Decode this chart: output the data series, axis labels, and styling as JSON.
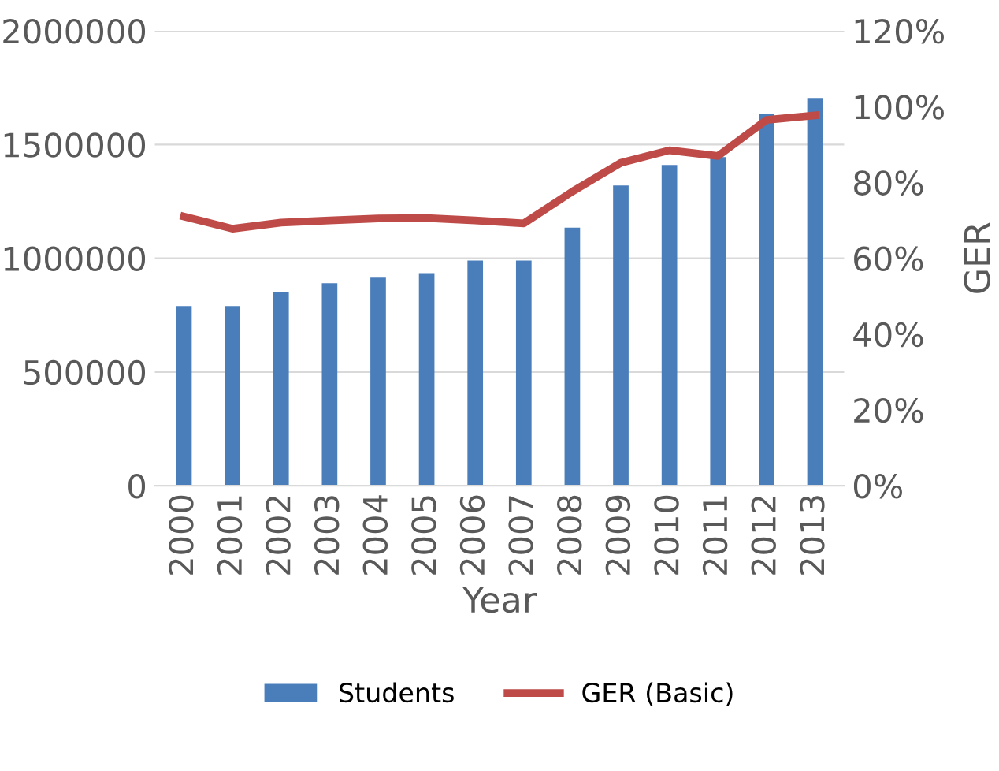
{
  "chart_data": {
    "type": "bar",
    "xlabel": "Year",
    "y2label": "GER",
    "categories": [
      "2000",
      "2001",
      "2002",
      "2003",
      "2004",
      "2005",
      "2006",
      "2007",
      "2008",
      "2009",
      "2010",
      "2011",
      "2012",
      "2013"
    ],
    "series": [
      {
        "name": "Students",
        "color": "#4a7ebb",
        "values": [
          790000,
          790000,
          850000,
          890000,
          915000,
          935000,
          990000,
          990000,
          1135000,
          1320000,
          1410000,
          1445000,
          1635000,
          1705000
        ]
      },
      {
        "name": "GER (Basic)",
        "type": "line",
        "axis": "y2",
        "color": "#be4b48",
        "values": [
          71,
          67.8,
          69.4,
          70,
          70.5,
          70.6,
          70,
          69.2,
          77.6,
          85.2,
          88.5,
          87,
          96.5,
          97.7
        ]
      }
    ],
    "ylim": [
      0,
      2000000
    ],
    "yticks": [
      0,
      500000,
      1000000,
      1500000,
      2000000
    ],
    "y2lim": [
      0,
      120
    ],
    "y2ticks": [
      {
        "value": 0,
        "label": "0%"
      },
      {
        "value": 20,
        "label": "20%"
      },
      {
        "value": 40,
        "label": "40%"
      },
      {
        "value": 60,
        "label": "60%"
      },
      {
        "value": 80,
        "label": "80%"
      },
      {
        "value": 100,
        "label": "100%"
      },
      {
        "value": 120,
        "label": "120%"
      }
    ],
    "grid": "y",
    "legend": "bottom",
    "marker": "none"
  }
}
